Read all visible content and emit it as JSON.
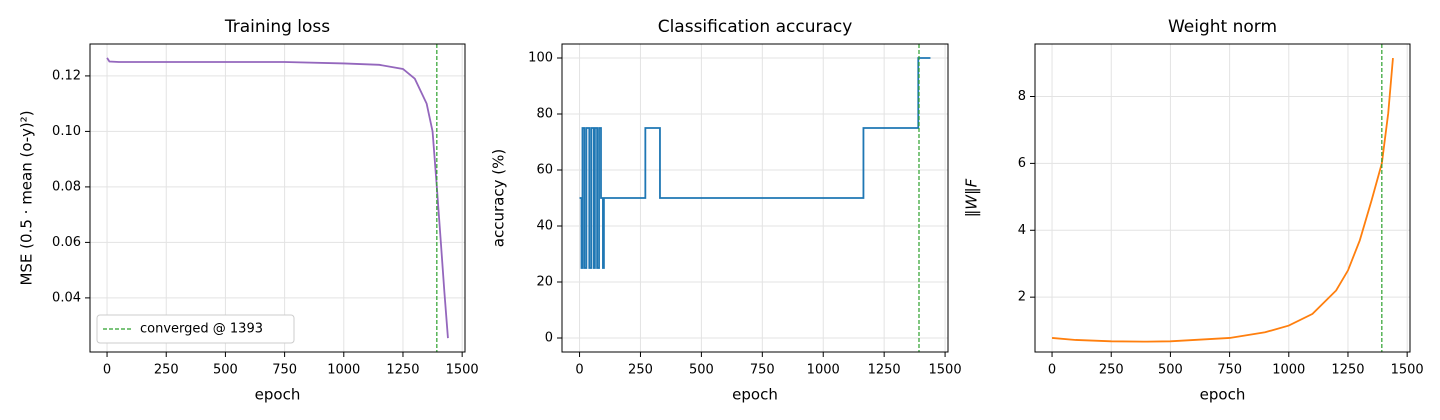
{
  "chart_data": [
    {
      "type": "line",
      "title": "Training loss",
      "xlabel": "epoch",
      "ylabel": "MSE  (0.5 · mean (o-y)²)",
      "x": [
        0,
        10,
        50,
        250,
        500,
        750,
        1000,
        1150,
        1250,
        1300,
        1350,
        1375,
        1393,
        1410,
        1425,
        1440
      ],
      "values": [
        0.1265,
        0.1252,
        0.125,
        0.125,
        0.125,
        0.125,
        0.1245,
        0.124,
        0.1225,
        0.119,
        0.11,
        0.1,
        0.08,
        0.06,
        0.042,
        0.0255
      ],
      "color": "#9467bd",
      "xlim": [
        -72,
        1512
      ],
      "ylim": [
        0.0205,
        0.1315
      ],
      "xticks": [
        0,
        250,
        500,
        750,
        1000,
        1250,
        1500
      ],
      "yticks": [
        0.04,
        0.06,
        0.08,
        {
          "value": 0.1,
          "label": "0.10"
        },
        0.12
      ],
      "grid": true,
      "vline": {
        "x": 1393,
        "color": "#2ca02c",
        "label": "converged @ 1393"
      },
      "legend": "lower left"
    },
    {
      "type": "step",
      "title": "Classification accuracy",
      "xlabel": "epoch",
      "ylabel": "accuracy (%)",
      "x": [
        0,
        8,
        12,
        20,
        28,
        40,
        48,
        58,
        63,
        72,
        80,
        88,
        96,
        100,
        270,
        330,
        1165,
        1390,
        1440
      ],
      "values": [
        50,
        25,
        75,
        25,
        75,
        25,
        75,
        25,
        75,
        25,
        75,
        50,
        25,
        50,
        75,
        50,
        75,
        100,
        100
      ],
      "color": "#1f77b4",
      "xlim": [
        -72,
        1512
      ],
      "ylim": [
        -5,
        105
      ],
      "xticks": [
        0,
        250,
        500,
        750,
        1000,
        1250,
        1500
      ],
      "yticks": [
        0,
        20,
        40,
        60,
        80,
        100
      ],
      "grid": true,
      "vline": {
        "x": 1393,
        "color": "#2ca02c"
      }
    },
    {
      "type": "line",
      "title": "Weight norm",
      "xlabel": "epoch",
      "ylabel": "‖W‖F",
      "x": [
        0,
        100,
        250,
        400,
        500,
        750,
        900,
        1000,
        1100,
        1200,
        1250,
        1300,
        1350,
        1393,
        1420,
        1440
      ],
      "values": [
        0.78,
        0.72,
        0.68,
        0.67,
        0.68,
        0.78,
        0.95,
        1.15,
        1.5,
        2.2,
        2.8,
        3.7,
        4.9,
        6.0,
        7.5,
        9.15
      ],
      "color": "#ff7f0e",
      "xlim": [
        -72,
        1512
      ],
      "ylim": [
        0.36,
        9.57
      ],
      "xticks": [
        0,
        250,
        500,
        750,
        1000,
        1250,
        1500
      ],
      "yticks": [
        2,
        4,
        6,
        8
      ],
      "grid": true,
      "vline": {
        "x": 1393,
        "color": "#2ca02c"
      }
    }
  ]
}
